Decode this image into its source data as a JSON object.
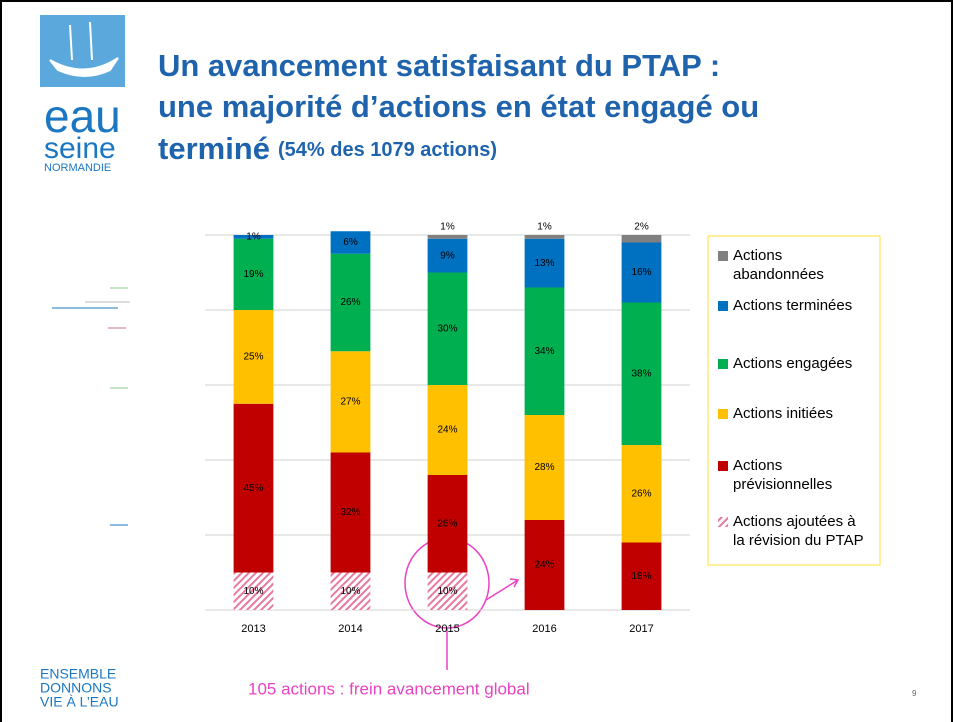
{
  "logo": {
    "lines": [
      "eau",
      "seine",
      "NORMANDIE"
    ]
  },
  "title": {
    "lines": [
      "Un avancement satisfaisant du PTAP :",
      "une majorité d’actions en état engagé ou",
      "terminé"
    ],
    "subtitle": "(54% des 1079 actions)"
  },
  "chart_data": {
    "type": "bar",
    "stacked": true,
    "categories": [
      "2013",
      "2014",
      "2015",
      "2016",
      "2017"
    ],
    "series": [
      {
        "name": "Actions ajoutées à la révision du PTAP",
        "color": "#e8799f",
        "pattern": "hatched",
        "values": [
          10,
          10,
          10,
          null,
          null
        ],
        "value_labels": [
          "10%",
          "10%",
          "10%",
          null,
          null
        ]
      },
      {
        "name": "Actions prévisionnelles",
        "color": "#c00000",
        "values": [
          45,
          32,
          26,
          24,
          18
        ],
        "value_labels": [
          "45%",
          "32%",
          "26%",
          "24%",
          "18%"
        ]
      },
      {
        "name": "Actions initiées",
        "color": "#ffc000",
        "values": [
          25,
          27,
          24,
          28,
          26
        ],
        "value_labels": [
          "25%",
          "27%",
          "24%",
          "28%",
          "26%"
        ]
      },
      {
        "name": "Actions engagées",
        "color": "#00b050",
        "values": [
          19,
          26,
          30,
          34,
          38
        ],
        "value_labels": [
          "19%",
          "26%",
          "30%",
          "34%",
          "38%"
        ]
      },
      {
        "name": "Actions terminées",
        "color": "#0070c0",
        "values": [
          1,
          6,
          9,
          13,
          16
        ],
        "value_labels": [
          "1%",
          "6%",
          "9%",
          "13%",
          "16%"
        ]
      },
      {
        "name": "Actions abandonnées",
        "color": "#808080",
        "values": [
          null,
          null,
          1,
          1,
          2
        ],
        "value_labels": [
          null,
          null,
          "1%",
          "1%",
          "2%"
        ]
      }
    ],
    "ylim": [
      0,
      100
    ],
    "yticks": [
      0,
      20,
      40,
      60,
      80,
      100
    ],
    "grid": true,
    "legend": "right"
  },
  "annotation": "105 actions : frein avancement global",
  "slogan": [
    "ENSEMBLE",
    "DONNONS",
    "VIE À L’EAU"
  ],
  "page_number": "9"
}
